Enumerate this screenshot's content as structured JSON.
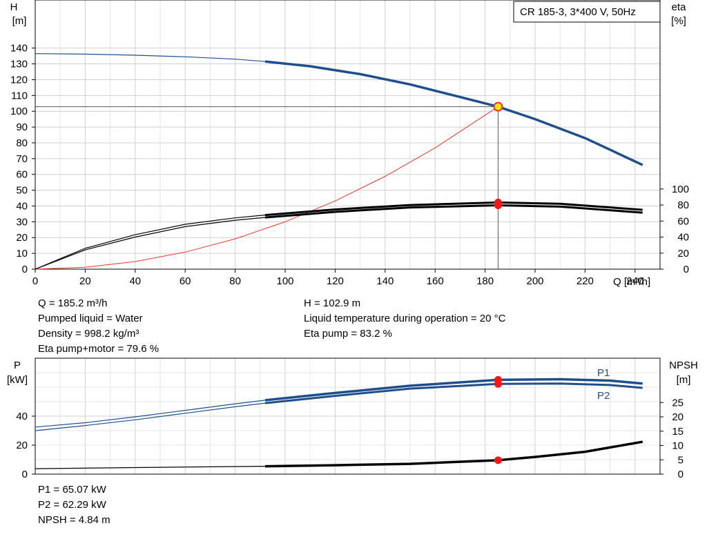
{
  "chart_data": [
    {
      "type": "line",
      "title": "CR 185-3, 3*400 V, 50Hz",
      "xlabel": "Q [m³/h]",
      "ylabel_left": [
        "H",
        "[m]"
      ],
      "ylabel_right": [
        "eta",
        "[%]"
      ],
      "xlim": [
        0,
        250
      ],
      "ylim_left": [
        0,
        145
      ],
      "ylim_right": [
        0,
        100
      ],
      "x_ticks": [
        "0",
        "20",
        "40",
        "60",
        "80",
        "100",
        "120",
        "140",
        "160",
        "180",
        "200",
        "220",
        "240"
      ],
      "y_ticks_left": [
        "0",
        "10",
        "20",
        "30",
        "40",
        "50",
        "60",
        "70",
        "80",
        "90",
        "100",
        "110",
        "120",
        "130",
        "140"
      ],
      "y_ticks_right": [
        "0",
        "20",
        "40",
        "60",
        "80",
        "100"
      ],
      "grid": true,
      "series": [
        {
          "name": "H",
          "color": "#1f4e8c",
          "x": [
            0,
            20,
            40,
            60,
            80,
            92,
            110,
            130,
            150,
            170,
            185.2,
            200,
            220,
            243
          ],
          "y": [
            136.5,
            136.2,
            135.5,
            134.5,
            133,
            131.5,
            128.5,
            123.5,
            117,
            109,
            102.9,
            95,
            83,
            66
          ]
        },
        {
          "name": "Eta pump",
          "color": "#000000",
          "x": [
            0,
            20,
            40,
            60,
            80,
            92,
            120,
            150,
            185.2,
            210,
            243
          ],
          "y": [
            0,
            26,
            43,
            56,
            64,
            67.5,
            74.5,
            80,
            83.2,
            81.5,
            74
          ]
        },
        {
          "name": "Eta pump+motor",
          "color": "#000000",
          "x": [
            0,
            20,
            40,
            60,
            80,
            92,
            120,
            150,
            185.2,
            210,
            243
          ],
          "y": [
            0,
            24,
            40,
            53,
            61,
            64.5,
            71.5,
            77,
            79.6,
            78,
            70.5
          ]
        },
        {
          "name": "System curve",
          "color": "#e8352c",
          "x": [
            0,
            20,
            40,
            60,
            80,
            100,
            120,
            140,
            160,
            185.2
          ],
          "y": [
            0,
            1.2,
            4.8,
            10.8,
            19.2,
            30,
            43.2,
            58.8,
            76.8,
            102.9
          ]
        }
      ],
      "duty_point": {
        "Q": 185.2,
        "H": 102.9,
        "eta_pump": 83.2,
        "eta_pump_motor": 79.6
      }
    },
    {
      "type": "line",
      "xlim": [
        0,
        250
      ],
      "ylabel_left": [
        "P",
        "[kW]"
      ],
      "ylabel_right": [
        "NPSH",
        "[m]"
      ],
      "y_ticks_left": [
        "0",
        "20",
        "40"
      ],
      "y_ticks_right": [
        "0",
        "5",
        "10",
        "15",
        "20",
        "25"
      ],
      "ylim_left": [
        0,
        80
      ],
      "ylim_right": [
        0,
        32
      ],
      "grid": true,
      "series": [
        {
          "name": "P1",
          "color": "#1f4e8c",
          "x": [
            0,
            20,
            40,
            60,
            80,
            92,
            120,
            150,
            185.2,
            210,
            230,
            243
          ],
          "y": [
            32.5,
            35.5,
            39.5,
            44,
            48.5,
            51,
            56,
            61,
            65.07,
            65.5,
            64.5,
            62.5
          ]
        },
        {
          "name": "P2",
          "color": "#1f4e8c",
          "x": [
            0,
            20,
            40,
            60,
            80,
            92,
            120,
            150,
            185.2,
            210,
            230,
            243
          ],
          "y": [
            30,
            33.5,
            37.5,
            42,
            46.5,
            49,
            54,
            59,
            62.29,
            62.5,
            61.5,
            59.5
          ]
        },
        {
          "name": "NPSH",
          "color": "#000000",
          "x": [
            0,
            40,
            92,
            120,
            150,
            185.2,
            200,
            220,
            243
          ],
          "y": [
            1.9,
            2.3,
            2.75,
            3.1,
            3.6,
            4.84,
            6.0,
            7.8,
            11.3
          ]
        }
      ],
      "duty_point": {
        "Q": 185.2,
        "P1": 65.07,
        "P2": 62.29,
        "NPSH": 4.84
      }
    }
  ],
  "legend": {
    "p1": "P1",
    "p2": "P2"
  },
  "info_block_1_left": [
    "Q = 185.2 m³/h",
    "Pumped liquid = Water",
    "Density = 998.2 kg/m³",
    "Eta pump+motor = 79.6 %"
  ],
  "info_block_1_right": [
    "H = 102.9 m",
    "Liquid temperature during operation = 20 °C",
    "Eta pump = 83.2 %"
  ],
  "info_block_2": [
    "P1 = 65.07 kW",
    "P2 = 62.29 kW",
    "NPSH = 4.84 m"
  ]
}
